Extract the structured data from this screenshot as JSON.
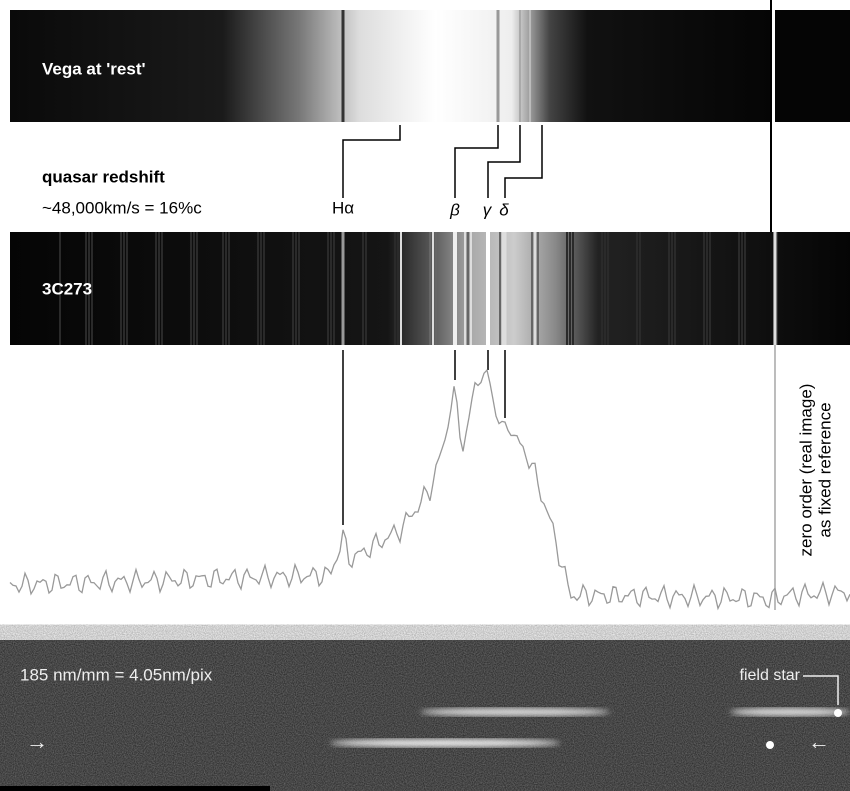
{
  "vega_label": "Vega at 'rest'",
  "redshift_title": "quasar redshift",
  "redshift_value": "~48,000km/s = 16%c",
  "lines": {
    "h_alpha": "Hα",
    "beta": "β",
    "gamma": "γ",
    "delta": "δ"
  },
  "quasar_label": "3C273",
  "zero_order": {
    "line1": "zero order (real image)",
    "line2": "as fixed reference"
  },
  "dispersion": "185 nm/mm = 4.05nm/pix",
  "field_star": "field star",
  "arrow_left": "→",
  "arrow_right": "←"
}
